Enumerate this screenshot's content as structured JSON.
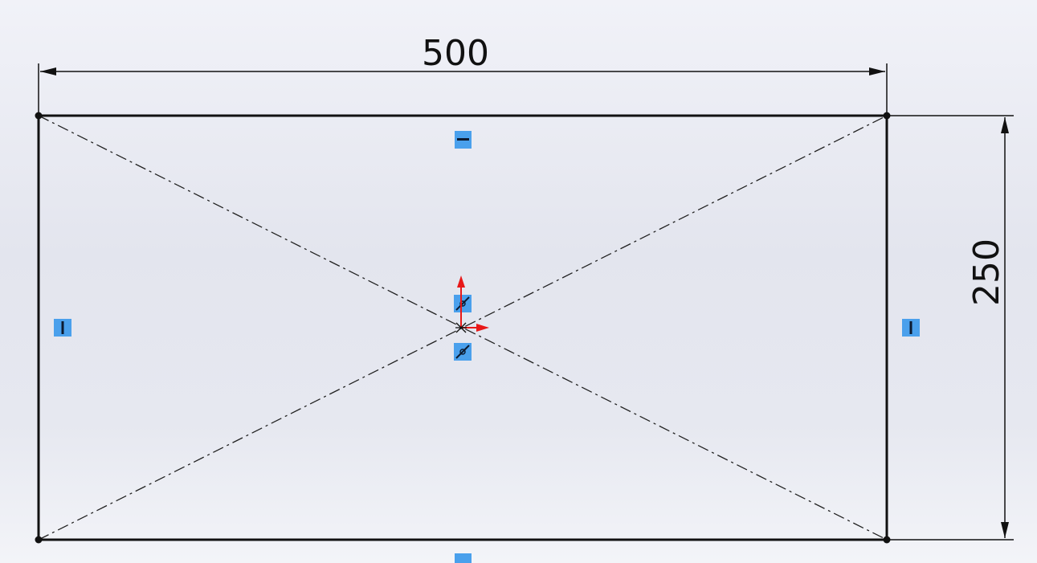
{
  "sketch": {
    "horizontal_dimension": "500",
    "vertical_dimension": "250"
  },
  "relations": {
    "horizontal": "horizontal-relation-icon",
    "vertical": "vertical-relation-icon",
    "midpoint": "midpoint-relation-icon"
  },
  "colors": {
    "background_top": "#f1f2f8",
    "background_mid": "#e3e5ee",
    "sketch_line": "#111111",
    "relation_badge": "#4aa0ec",
    "origin_arrow": "#e81818"
  }
}
